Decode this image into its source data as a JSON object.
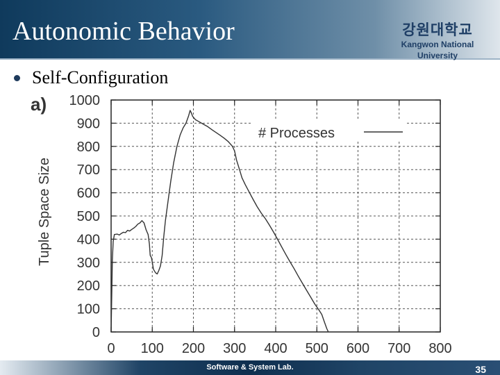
{
  "header": {
    "title": "Autonomic Behavior",
    "logo_korean": "강원대학교",
    "logo_english": "Kangwon National University"
  },
  "bullet": {
    "text": "Self-Configuration"
  },
  "figure_label": "a)",
  "chart_data": {
    "type": "line",
    "xlabel": "",
    "ylabel": "Tuple Space Size",
    "xlim": [
      0,
      800
    ],
    "ylim": [
      0,
      1000
    ],
    "x_ticks": [
      0,
      100,
      200,
      300,
      400,
      500,
      600,
      700,
      800
    ],
    "y_ticks": [
      0,
      100,
      200,
      300,
      400,
      500,
      600,
      700,
      800,
      900,
      1000
    ],
    "grid": true,
    "legend_position": "top-right",
    "series": [
      {
        "name": "# Processes",
        "color": "#333333",
        "points": [
          [
            0,
            0
          ],
          [
            3,
            310
          ],
          [
            5,
            390
          ],
          [
            8,
            420
          ],
          [
            15,
            422
          ],
          [
            20,
            418
          ],
          [
            25,
            425
          ],
          [
            30,
            430
          ],
          [
            35,
            428
          ],
          [
            40,
            438
          ],
          [
            45,
            435
          ],
          [
            50,
            442
          ],
          [
            55,
            448
          ],
          [
            60,
            455
          ],
          [
            65,
            465
          ],
          [
            70,
            470
          ],
          [
            75,
            480
          ],
          [
            80,
            470
          ],
          [
            85,
            440
          ],
          [
            90,
            420
          ],
          [
            93,
            380
          ],
          [
            95,
            330
          ],
          [
            98,
            320
          ],
          [
            100,
            300
          ],
          [
            103,
            270
          ],
          [
            108,
            255
          ],
          [
            112,
            250
          ],
          [
            116,
            265
          ],
          [
            120,
            285
          ],
          [
            124,
            330
          ],
          [
            128,
            410
          ],
          [
            132,
            480
          ],
          [
            138,
            560
          ],
          [
            145,
            650
          ],
          [
            152,
            730
          ],
          [
            160,
            800
          ],
          [
            168,
            850
          ],
          [
            175,
            880
          ],
          [
            182,
            900
          ],
          [
            188,
            930
          ],
          [
            192,
            955
          ],
          [
            195,
            945
          ],
          [
            198,
            930
          ],
          [
            205,
            915
          ],
          [
            215,
            905
          ],
          [
            225,
            895
          ],
          [
            235,
            885
          ],
          [
            245,
            872
          ],
          [
            255,
            860
          ],
          [
            265,
            848
          ],
          [
            275,
            835
          ],
          [
            285,
            820
          ],
          [
            295,
            800
          ],
          [
            300,
            780
          ],
          [
            305,
            740
          ],
          [
            312,
            700
          ],
          [
            318,
            665
          ],
          [
            326,
            635
          ],
          [
            335,
            605
          ],
          [
            345,
            572
          ],
          [
            355,
            540
          ],
          [
            365,
            512
          ],
          [
            375,
            488
          ],
          [
            385,
            460
          ],
          [
            395,
            430
          ],
          [
            405,
            398
          ],
          [
            415,
            365
          ],
          [
            425,
            333
          ],
          [
            435,
            302
          ],
          [
            445,
            272
          ],
          [
            455,
            240
          ],
          [
            465,
            210
          ],
          [
            475,
            180
          ],
          [
            485,
            150
          ],
          [
            495,
            120
          ],
          [
            505,
            95
          ],
          [
            512,
            75
          ],
          [
            518,
            45
          ],
          [
            524,
            15
          ],
          [
            528,
            0
          ]
        ]
      }
    ]
  },
  "footer": {
    "lab_name": "Software & System Lab.",
    "page_number": "35"
  },
  "colors": {
    "header_dark": "#0f3a5c",
    "header_light": "#dfe6ec",
    "logo_text": "#1f3f66",
    "footer_dark": "#0f2f4f"
  }
}
